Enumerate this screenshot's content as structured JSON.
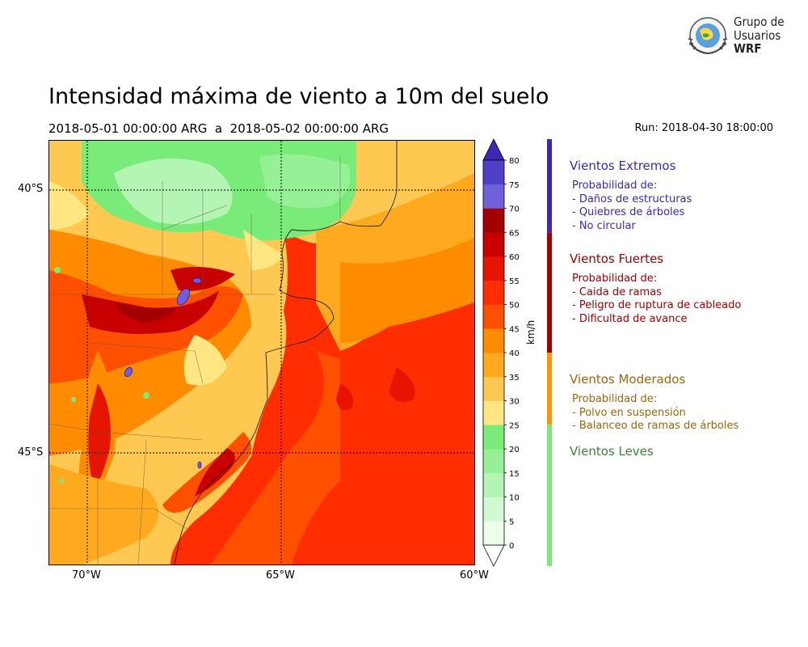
{
  "title": "Intensidad máxima de viento a 10m del suelo",
  "subtitle": "2018-05-01 00:00:00 ARG  a  2018-05-02 00:00:00 ARG",
  "run": "Run: 2018-04-30 18:00:00",
  "logo": {
    "line1": "Grupo de",
    "line2": "Usuarios",
    "line3": "WRF"
  },
  "map": {
    "lat_labels": [
      "40°S",
      "45°S"
    ],
    "lon_labels": [
      "70°W",
      "65°W",
      "60°W"
    ],
    "lon_range": [
      -71,
      -60
    ],
    "lat_range": [
      -39.1,
      -47.2
    ]
  },
  "colorbar": {
    "unit": "km/h",
    "ticks": [
      "0",
      "5",
      "10",
      "15",
      "20",
      "25",
      "30",
      "35",
      "40",
      "45",
      "50",
      "55",
      "60",
      "65",
      "70",
      "75",
      "80"
    ],
    "colors": [
      "#ebffeb",
      "#d2fad2",
      "#b4f5b4",
      "#96f096",
      "#78eb78",
      "#ffe682",
      "#ffc850",
      "#ffaa1e",
      "#ff8c00",
      "#ff5000",
      "#ff2d00",
      "#e61400",
      "#c80000",
      "#a50000",
      "#7060dc",
      "#5040c8",
      "#3c28b4"
    ],
    "over_color": "#3c28b4",
    "under_color": "#ffffff"
  },
  "categories": [
    {
      "title": "Vientos Extremos",
      "color": "#3c28b4",
      "range": [
        65,
        80
      ],
      "desc": [
        "Probabilidad de:",
        "- Daños de estructuras",
        "- Quiebres de árboles",
        "- No circular"
      ]
    },
    {
      "title": "Vientos Fuertes",
      "color": "#a50000",
      "range": [
        40,
        65
      ],
      "desc": [
        "Probabilidad de:",
        "- Caida de ramas",
        "- Peligro de ruptura de cableado",
        "- Dificultad de avance"
      ]
    },
    {
      "title": "Vientos Moderados",
      "color": "#ff9600",
      "text_color": "#a0640a",
      "range": [
        25,
        40
      ],
      "desc": [
        "Probabilidad de:",
        "- Polvo en suspensión",
        "- Balanceo de ramas de árboles"
      ]
    },
    {
      "title": "Vientos Leves",
      "color": "#78eb78",
      "text_color": "#3c823c",
      "range": [
        0,
        25
      ],
      "desc": []
    }
  ]
}
